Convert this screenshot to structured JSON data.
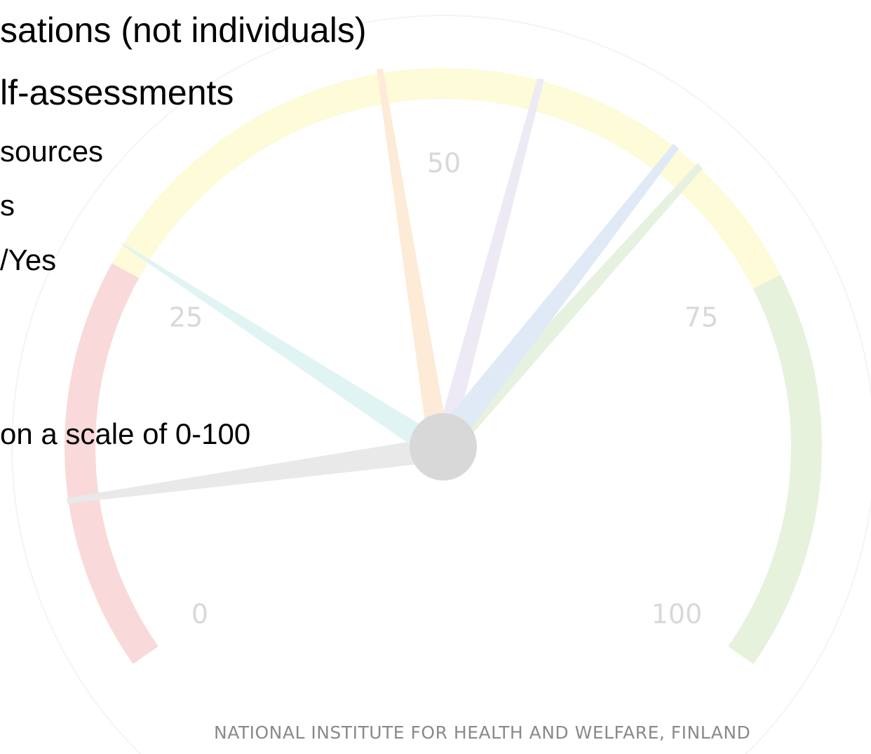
{
  "slide": {
    "lines": [
      "sations (not individuals)",
      "lf-assessments",
      "sources",
      "s",
      "/Yes",
      "on a scale of 0-100"
    ],
    "gauge_labels": [
      "0",
      "25",
      "50",
      "75",
      "100"
    ],
    "footer": "NATIONAL INSTITUTE FOR HEALTH AND WELFARE, FINLAND"
  }
}
